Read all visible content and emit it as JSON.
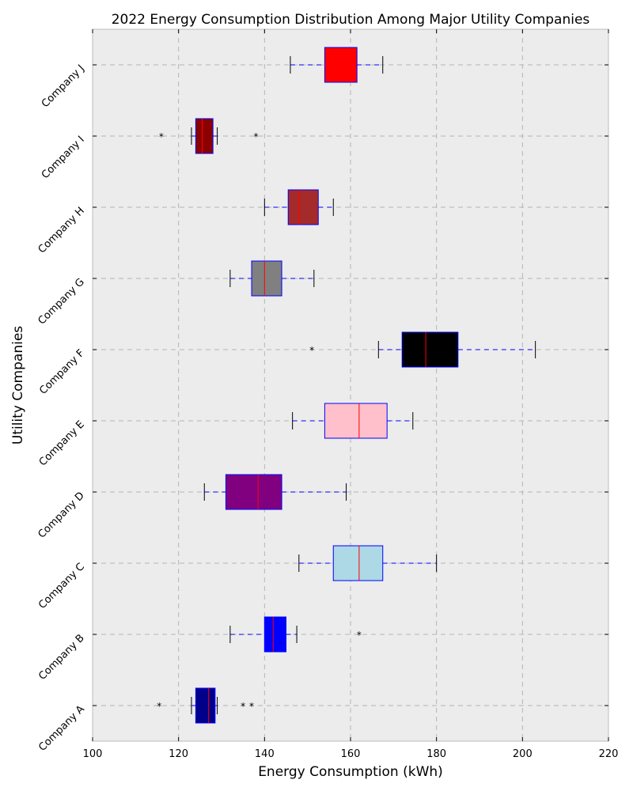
{
  "chart_data": {
    "type": "box",
    "orientation": "horizontal",
    "title": "2022 Energy Consumption Distribution Among Major Utility Companies",
    "xlabel": "Energy Consumption (kWh)",
    "ylabel": "Utility Companies",
    "xlim": [
      100,
      220
    ],
    "xticks": [
      100,
      120,
      140,
      160,
      180,
      200,
      220
    ],
    "grid": true,
    "background": "#ececec",
    "categories": [
      "Company A",
      "Company B",
      "Company C",
      "Company D",
      "Company E",
      "Company F",
      "Company G",
      "Company H",
      "Company I",
      "Company J"
    ],
    "boxes": [
      {
        "name": "Company A",
        "whislo": 123,
        "q1": 124,
        "med": 127,
        "q3": 128.5,
        "whishi": 129,
        "fliers": [
          115.5,
          135,
          137
        ],
        "color": "#00008b"
      },
      {
        "name": "Company B",
        "whislo": 132,
        "q1": 140,
        "med": 142,
        "q3": 145,
        "whishi": 147.5,
        "fliers": [
          162
        ],
        "color": "#0000ff"
      },
      {
        "name": "Company C",
        "whislo": 148,
        "q1": 156,
        "med": 162,
        "q3": 167.5,
        "whishi": 180,
        "fliers": [],
        "color": "#add8e6"
      },
      {
        "name": "Company D",
        "whislo": 126,
        "q1": 131,
        "med": 138.5,
        "q3": 144,
        "whishi": 159,
        "fliers": [],
        "color": "#800080"
      },
      {
        "name": "Company E",
        "whislo": 146.5,
        "q1": 154,
        "med": 162,
        "q3": 168.5,
        "whishi": 174.5,
        "fliers": [],
        "color": "#ffc0cb"
      },
      {
        "name": "Company F",
        "whislo": 166.5,
        "q1": 172,
        "med": 177.5,
        "q3": 185,
        "whishi": 203,
        "fliers": [
          151
        ],
        "color": "#000000"
      },
      {
        "name": "Company G",
        "whislo": 132,
        "q1": 137,
        "med": 140,
        "q3": 144,
        "whishi": 151.5,
        "fliers": [],
        "color": "#808080"
      },
      {
        "name": "Company H",
        "whislo": 140,
        "q1": 145.5,
        "med": 148,
        "q3": 152.5,
        "whishi": 156,
        "fliers": [],
        "color": "#a52a2a"
      },
      {
        "name": "Company I",
        "whislo": 123,
        "q1": 124,
        "med": 125.5,
        "q3": 128,
        "whishi": 129,
        "fliers": [
          116,
          138
        ],
        "color": "#8b0000"
      },
      {
        "name": "Company J",
        "whislo": 146,
        "q1": 154,
        "med": 160,
        "q3": 161.5,
        "whishi": 167.5,
        "fliers": [],
        "color": "#ff0000"
      }
    ]
  }
}
